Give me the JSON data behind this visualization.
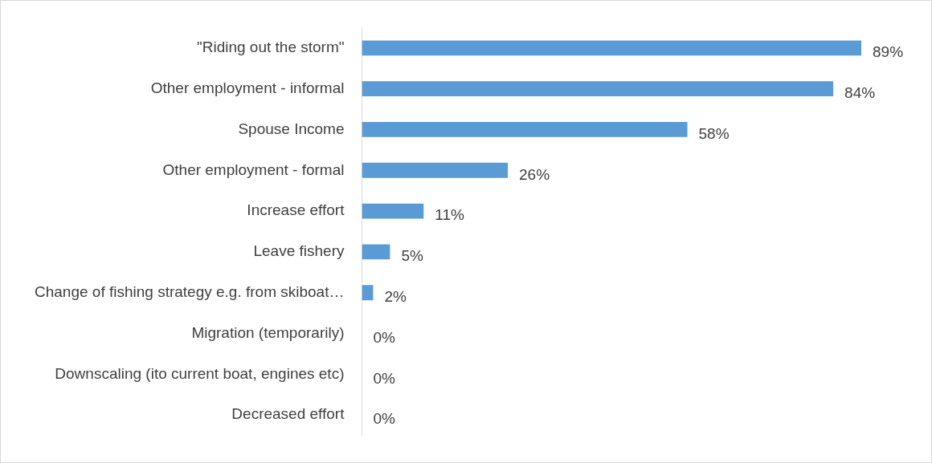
{
  "chart_data": {
    "type": "bar",
    "orientation": "horizontal",
    "categories": [
      "\"Riding out the storm\"",
      "Other employment - informal",
      "Spouse Income",
      "Other employment - formal",
      "Increase effort",
      "Leave fishery",
      "Change of fishing strategy e.g. from skiboat…",
      "Migration (temporarily)",
      "Downscaling (ito current boat, engines etc)",
      "Decreased effort"
    ],
    "values": [
      89,
      84,
      58,
      26,
      11,
      5,
      2,
      0,
      0,
      0
    ],
    "value_labels": [
      "89%",
      "84%",
      "58%",
      "26%",
      "11%",
      "5%",
      "2%",
      "0%",
      "0%",
      "0%"
    ],
    "color": "#5b9bd5",
    "tick_labels": "y"
  }
}
